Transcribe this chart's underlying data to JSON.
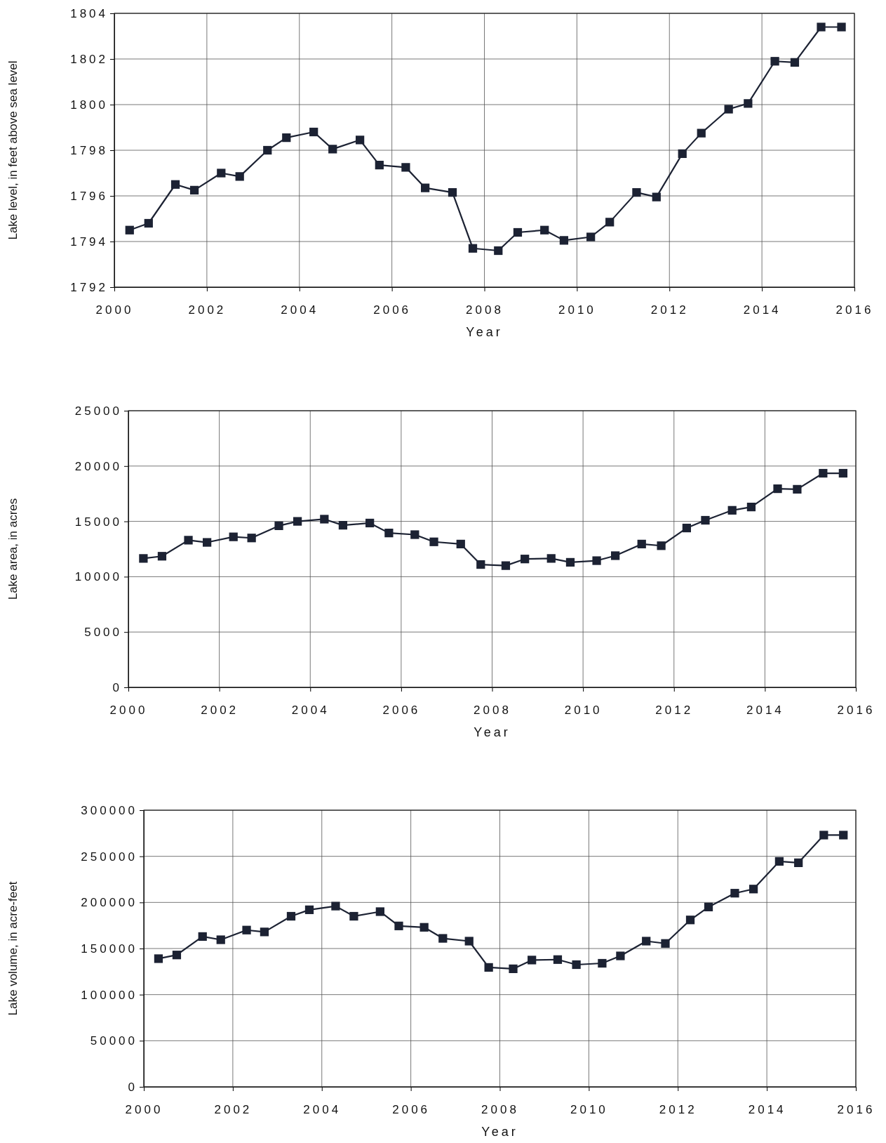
{
  "chart_data": [
    {
      "type": "line",
      "xlabel": "Year",
      "ylabel": "Lake level, in feet above sea level",
      "x": [
        2000.33,
        2000.74,
        2001.32,
        2001.73,
        2002.31,
        2002.71,
        2003.31,
        2003.72,
        2004.31,
        2004.72,
        2005.31,
        2005.73,
        2006.3,
        2006.72,
        2007.31,
        2007.75,
        2008.3,
        2008.72,
        2009.3,
        2009.72,
        2010.3,
        2010.71,
        2011.29,
        2011.72,
        2012.28,
        2012.69,
        2013.28,
        2013.7,
        2014.28,
        2014.71,
        2015.28,
        2015.72
      ],
      "series": [
        {
          "color": "#1c2233",
          "values": [
            1794.5,
            1794.8,
            1796.5,
            1796.25,
            1797.0,
            1796.85,
            1798.0,
            1798.55,
            1798.8,
            1798.05,
            1798.45,
            1797.35,
            1797.25,
            1796.35,
            1796.15,
            1793.7,
            1793.6,
            1794.4,
            1794.5,
            1794.05,
            1794.2,
            1794.85,
            1796.15,
            1795.95,
            1797.85,
            1798.75,
            1799.8,
            1800.05,
            1801.9,
            1801.85,
            1803.4,
            1803.4
          ]
        }
      ],
      "xlim": [
        2000,
        2016
      ],
      "xticks": [
        2000,
        2002,
        2004,
        2006,
        2008,
        2010,
        2012,
        2014,
        2016
      ],
      "ylim": [
        1792,
        1804
      ],
      "yticks": [
        1792,
        1794,
        1796,
        1798,
        1800,
        1802,
        1804
      ],
      "grid": true,
      "marker": "square",
      "line_style": "solid"
    },
    {
      "type": "line",
      "xlabel": "Year",
      "ylabel": "Lake area, in acres",
      "x": [
        2000.33,
        2000.74,
        2001.32,
        2001.73,
        2002.31,
        2002.71,
        2003.31,
        2003.72,
        2004.31,
        2004.72,
        2005.31,
        2005.73,
        2006.3,
        2006.72,
        2007.31,
        2007.75,
        2008.3,
        2008.72,
        2009.3,
        2009.72,
        2010.3,
        2010.71,
        2011.29,
        2011.72,
        2012.28,
        2012.69,
        2013.28,
        2013.7,
        2014.28,
        2014.71,
        2015.28,
        2015.72
      ],
      "series": [
        {
          "color": "#1c2233",
          "values": [
            11650,
            11850,
            13300,
            13100,
            13600,
            13500,
            14600,
            15000,
            15200,
            14650,
            14850,
            13950,
            13800,
            13150,
            12950,
            11100,
            11000,
            11600,
            11650,
            11300,
            11450,
            11900,
            12950,
            12800,
            14400,
            15100,
            16000,
            16300,
            17950,
            17900,
            19350,
            19350
          ]
        }
      ],
      "xlim": [
        2000,
        2016
      ],
      "xticks": [
        2000,
        2002,
        2004,
        2006,
        2008,
        2010,
        2012,
        2014,
        2016
      ],
      "ylim": [
        0,
        25000
      ],
      "yticks": [
        0,
        5000,
        10000,
        15000,
        20000,
        25000
      ],
      "grid": true,
      "marker": "square",
      "line_style": "solid"
    },
    {
      "type": "line",
      "xlabel": "Year",
      "ylabel": "Lake volume, in acre-feet",
      "x": [
        2000.33,
        2000.74,
        2001.32,
        2001.73,
        2002.31,
        2002.71,
        2003.31,
        2003.72,
        2004.31,
        2004.72,
        2005.31,
        2005.73,
        2006.3,
        2006.72,
        2007.31,
        2007.75,
        2008.3,
        2008.72,
        2009.3,
        2009.72,
        2010.3,
        2010.71,
        2011.29,
        2011.72,
        2012.28,
        2012.69,
        2013.28,
        2013.7,
        2014.28,
        2014.71,
        2015.28,
        2015.72
      ],
      "series": [
        {
          "color": "#1c2233",
          "values": [
            139000,
            143000,
            163000,
            159500,
            170000,
            168000,
            185000,
            192000,
            196000,
            185000,
            190000,
            174500,
            173000,
            161000,
            158000,
            129500,
            128000,
            137500,
            138000,
            132500,
            134000,
            142000,
            158000,
            155500,
            181000,
            195000,
            210000,
            214500,
            244500,
            243000,
            273000,
            273000
          ]
        }
      ],
      "xlim": [
        2000,
        2016
      ],
      "xticks": [
        2000,
        2002,
        2004,
        2006,
        2008,
        2010,
        2012,
        2014,
        2016
      ],
      "ylim": [
        0,
        300000
      ],
      "yticks": [
        0,
        50000,
        100000,
        150000,
        200000,
        250000,
        300000
      ],
      "grid": true,
      "marker": "square",
      "line_style": "solid"
    }
  ]
}
